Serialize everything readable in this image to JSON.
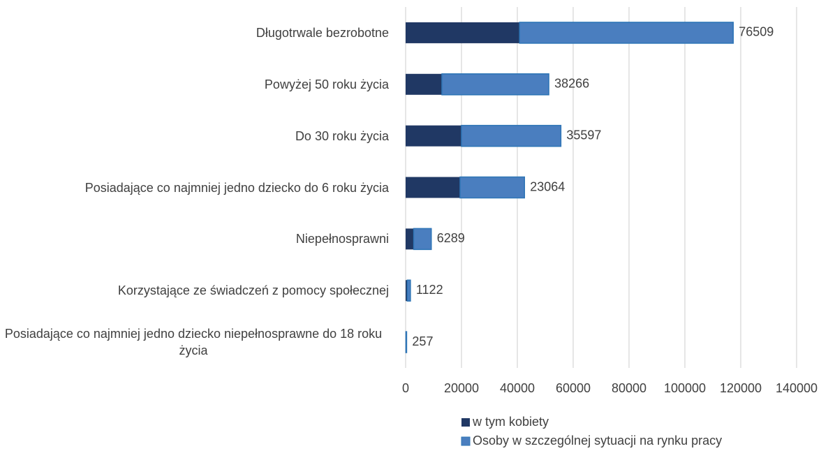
{
  "chart_data": {
    "type": "stacked-bar-horizontal",
    "categories": [
      "Długotrwale bezrobotne",
      "Powyżej 50 roku życia",
      "Do 30 roku życia",
      "Posiadające co najmniej jedno dziecko do 6 roku życia",
      "Niepełnosprawni",
      "Korzystające ze świadczeń z pomocy społecznej",
      "Posiadające co najmniej jedno dziecko niepełnosprawne do 18 roku życia"
    ],
    "series": [
      {
        "name": "w tym kobiety",
        "color": "#203864",
        "values": [
          40800,
          13000,
          20000,
          19500,
          2900,
          600,
          100
        ]
      },
      {
        "name": "Osoby w szczególnej sytuacji na rynku pracy",
        "color": "#4a7ebf",
        "values": [
          76509,
          38266,
          35597,
          23064,
          6289,
          1122,
          257
        ]
      }
    ],
    "xlim": [
      0,
      140000
    ],
    "xticks": [
      0,
      20000,
      40000,
      60000,
      80000,
      100000,
      120000,
      140000
    ],
    "grid": true,
    "legend": "bottom"
  }
}
